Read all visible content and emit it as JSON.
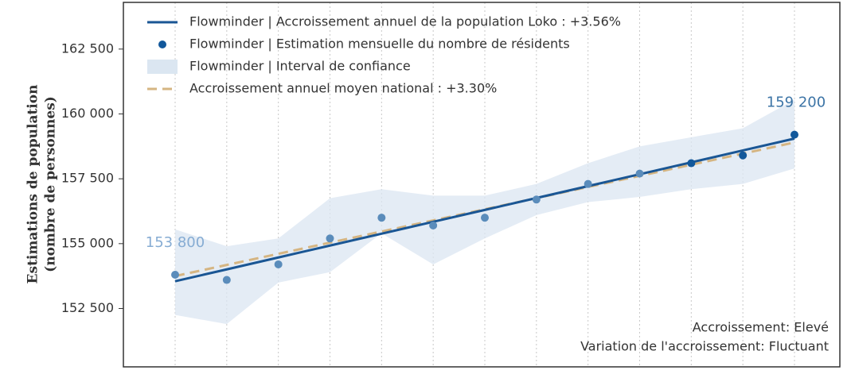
{
  "chart_data": {
    "type": "line",
    "y_label_lines": [
      "Estimations de population",
      "(nombre de personnes)"
    ],
    "categories": [
      null,
      null,
      null,
      null,
      null,
      null,
      null,
      null,
      null,
      null,
      null,
      null,
      null
    ],
    "ylim": [
      150250,
      164300
    ],
    "yticks": [
      {
        "value": 152500,
        "label": "152 500"
      },
      {
        "value": 155000,
        "label": "155 000"
      },
      {
        "value": 157500,
        "label": "157 500"
      },
      {
        "value": 160000,
        "label": "160 000"
      },
      {
        "value": 162500,
        "label": "162 500"
      }
    ],
    "grid": "x",
    "legend": "top-left",
    "series": [
      {
        "name": "Flowminder | Accroissement annuel de la population Loko : +3.56%",
        "kind": "line",
        "color": "#1a5694",
        "values": [
          153550,
          154008,
          154467,
          154925,
          155383,
          155842,
          156300,
          156758,
          157217,
          157675,
          158133,
          158592,
          159050
        ]
      },
      {
        "name": "Flowminder | Estimation mensuelle du nombre de résidents",
        "kind": "points",
        "color": "#12589b",
        "values": [
          153800,
          153600,
          154200,
          155200,
          156000,
          155700,
          156000,
          156700,
          157300,
          157700,
          158100,
          158400,
          159200
        ],
        "colors": [
          "#5a8cbb",
          "#5a8cbb",
          "#5a8cbb",
          "#5a8cbb",
          "#5a8cbb",
          "#5a8cbb",
          "#5a8cbb",
          "#5a8cbb",
          "#5a8cbb",
          "#5a8cbb",
          "#12589b",
          "#12589b",
          "#12589b"
        ],
        "value_labels": [
          "153 800",
          null,
          null,
          null,
          null,
          null,
          null,
          null,
          null,
          null,
          null,
          null,
          "159 200"
        ],
        "value_label_colors": [
          "#86acd3",
          null,
          null,
          null,
          null,
          null,
          null,
          null,
          null,
          null,
          null,
          null,
          "#3c74a6"
        ]
      },
      {
        "name": "Flowminder | Interval de confiance",
        "kind": "band",
        "color": "#dbe6f1",
        "upper": [
          155550,
          154900,
          155200,
          156750,
          157100,
          156850,
          156850,
          157300,
          158100,
          158750,
          159100,
          159450,
          160550
        ],
        "lower": [
          152250,
          151900,
          153500,
          153900,
          155400,
          154200,
          155200,
          156100,
          156600,
          156800,
          157100,
          157300,
          157900
        ]
      },
      {
        "name": "Accroissement annuel moyen national : +3.30%",
        "kind": "dashed",
        "color": "#d5b582",
        "values": [
          153750,
          154179,
          154608,
          155038,
          155467,
          155896,
          156325,
          156754,
          157183,
          157613,
          158042,
          158471,
          158900
        ]
      }
    ],
    "annotations": [
      "Accroissement: Elevé",
      "Variation de l'accroissement: Fluctuant"
    ]
  }
}
